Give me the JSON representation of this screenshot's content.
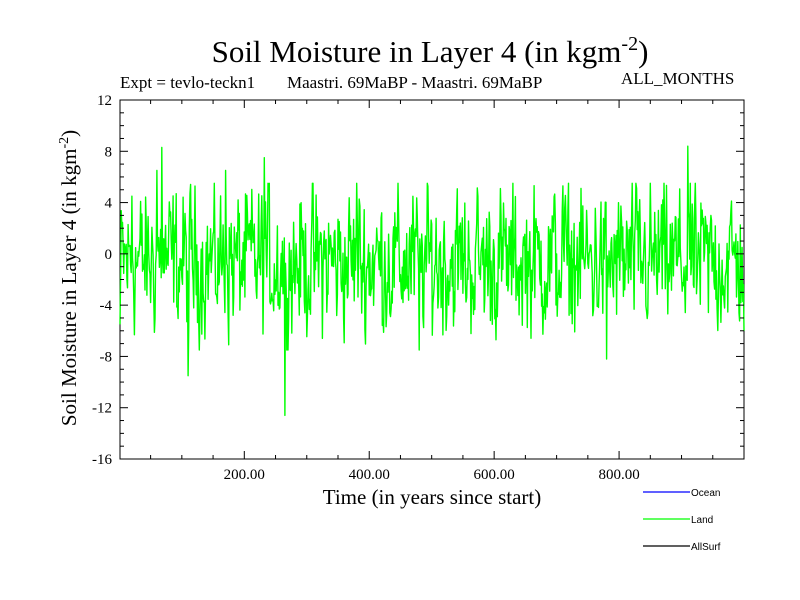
{
  "header": {
    "title_main": "Soil Moisture in Layer 4 (in kgm",
    "title_exp": "-2",
    "title_end": ")",
    "expt": "Expt = tevlo-teckn1",
    "period": "Maastri.  69MaBP - Maastri.  69MaBP",
    "months": "ALL_MONTHS"
  },
  "chart_data": {
    "type": "line",
    "title": "Soil Moisture in Layer 4 (in kgm-2)",
    "xlabel": "Time (in years since start)",
    "ylabel": "Soil Moisture in Layer 4 (in kgm-2)",
    "xlim": [
      1,
      1000
    ],
    "ylim": [
      -16,
      12
    ],
    "x_ticks": [
      200,
      400,
      600,
      800
    ],
    "x_tick_labels": [
      "200.00",
      "400.00",
      "600.00",
      "800.00"
    ],
    "y_ticks": [
      12,
      8,
      4,
      0,
      -4,
      -8,
      -12,
      -16
    ],
    "y_tick_labels": [
      "12",
      "8",
      "4",
      "0",
      "-4",
      "-8",
      "-12",
      "-16"
    ],
    "ylabel_main": "Soil Moisture in Layer 4 (in kgm",
    "ylabel_exp": "-2",
    "ylabel_end": ")",
    "legend": [
      "Ocean",
      "Land",
      "AllSurf"
    ],
    "legend_position": "bottom-right",
    "series": [
      {
        "name": "Ocean",
        "color": "#0000ff",
        "values": []
      },
      {
        "name": "Land",
        "color": "#00ff00",
        "sample_points": [
          {
            "year": 1,
            "value": -5.5
          },
          {
            "year": 20,
            "value": 4.5
          },
          {
            "year": 60,
            "value": 6.5
          },
          {
            "year": 68,
            "value": 8.3
          },
          {
            "year": 110,
            "value": -9.5
          },
          {
            "year": 170,
            "value": 6.5
          },
          {
            "year": 232,
            "value": 7.5
          },
          {
            "year": 265,
            "value": -12.6
          },
          {
            "year": 380,
            "value": 5.5
          },
          {
            "year": 480,
            "value": -7.5
          },
          {
            "year": 710,
            "value": 5.3
          },
          {
            "year": 780,
            "value": -8.2
          },
          {
            "year": 910,
            "value": 8.4
          },
          {
            "year": 1000,
            "value": -6.0
          }
        ],
        "typical_range": [
          -6,
          6
        ]
      },
      {
        "name": "AllSurf",
        "color": "#000000",
        "values": []
      }
    ]
  }
}
